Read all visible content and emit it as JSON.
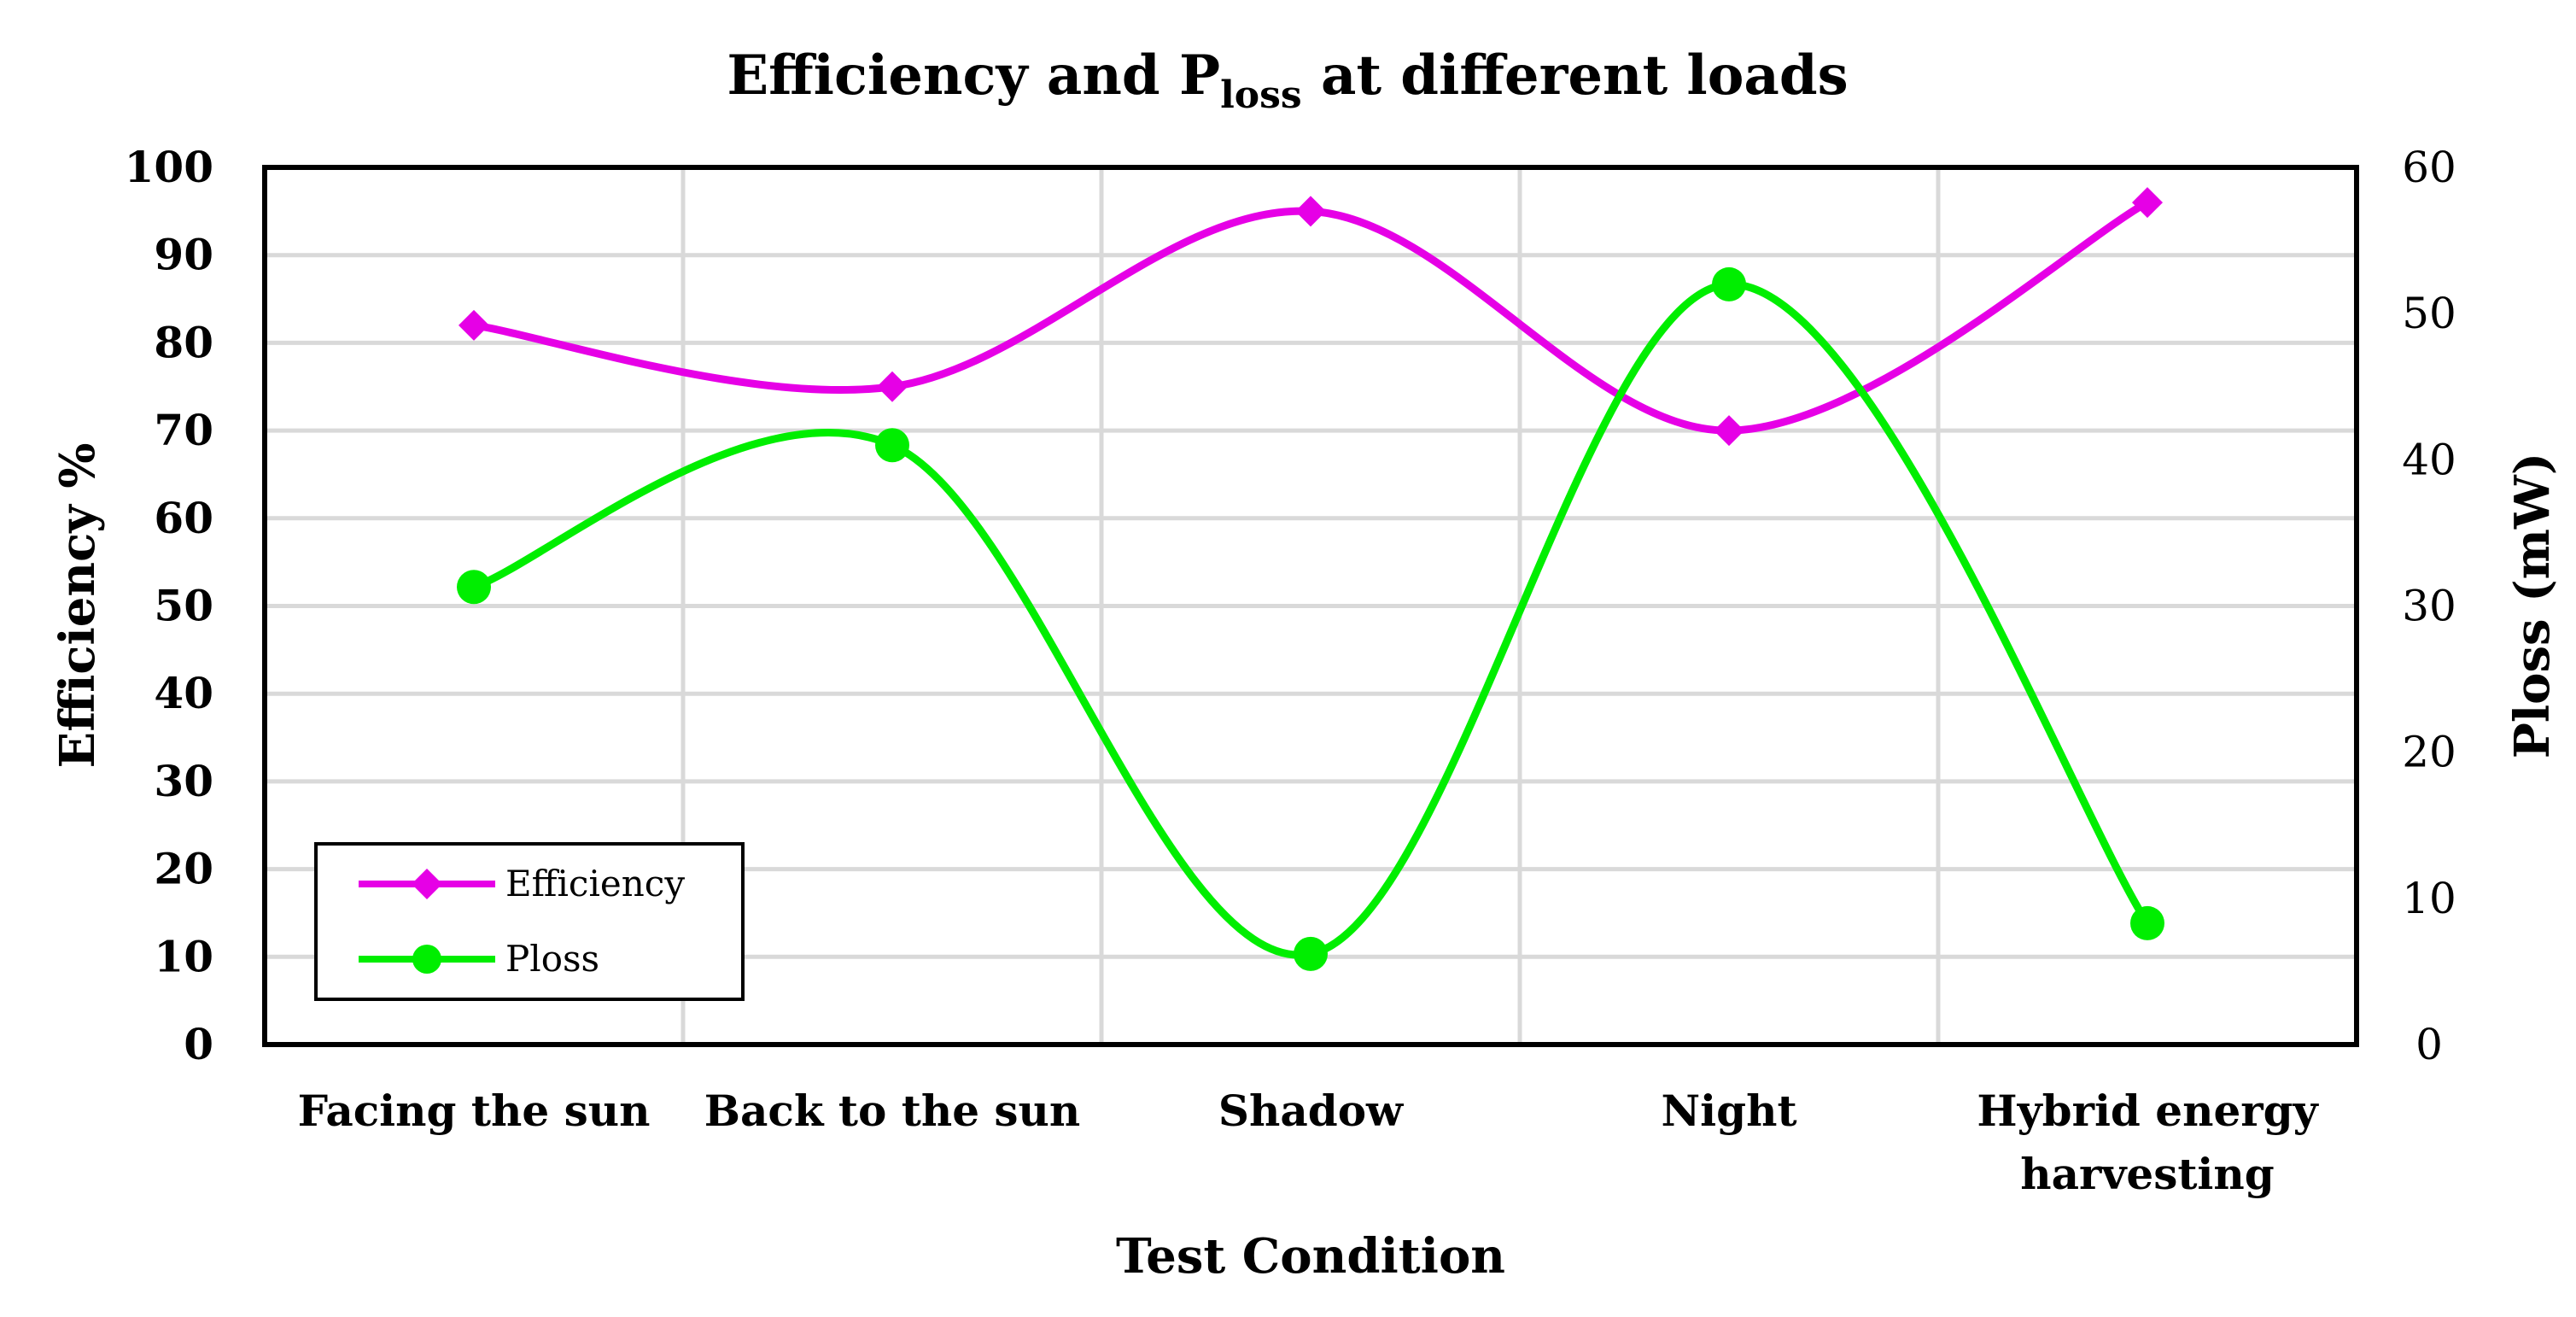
{
  "chart_data": {
    "type": "line",
    "title_main": "Efficiency and P",
    "title_sub": "loss",
    "title_rest": " at different loads",
    "xlabel": "Test Condition",
    "ylabel_left": "Efficiency  %",
    "ylabel_right": "Ploss (mW)",
    "categories": [
      [
        "Facing the sun"
      ],
      [
        "Back to the sun"
      ],
      [
        "Shadow"
      ],
      [
        "Night"
      ],
      [
        "Hybrid energy",
        "harvesting"
      ]
    ],
    "y_left": {
      "min": 0,
      "max": 100,
      "step": 10
    },
    "y_right": {
      "min": 0,
      "max": 60,
      "step": 10
    },
    "grid": true,
    "legend_position": "bottom-left",
    "series": [
      {
        "name": "Efficiency",
        "axis": "left",
        "marker": "diamond",
        "color": "#e600e6",
        "values": [
          82,
          75,
          95,
          70,
          96
        ]
      },
      {
        "name": "Ploss",
        "axis": "right",
        "marker": "circle",
        "color": "#00ee00",
        "values": [
          31.3,
          41,
          6.2,
          52,
          8.3
        ]
      }
    ]
  }
}
